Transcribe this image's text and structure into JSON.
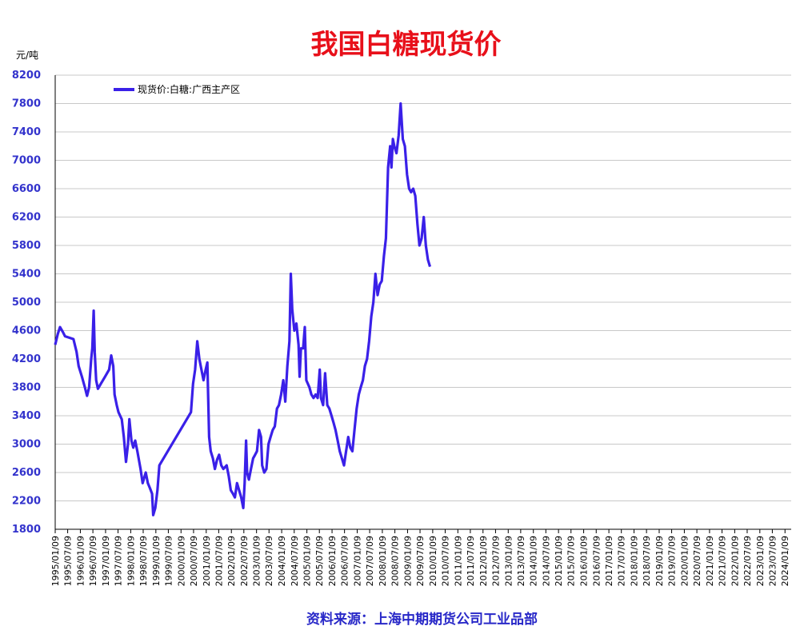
{
  "chart_data": {
    "type": "line",
    "title": "我国白糖现货价",
    "unit_label": "元/吨",
    "source": "资料来源：上海中期期货公司工业品部",
    "ylim": [
      1800,
      8200
    ],
    "yticks": [
      "8200",
      "7800",
      "7400",
      "7000",
      "6600",
      "6200",
      "5800",
      "5400",
      "5000",
      "4600",
      "4200",
      "3800",
      "3400",
      "3000",
      "2600",
      "2200",
      "1800"
    ],
    "xticks": [
      "1995/01/09",
      "1995/07/09",
      "1996/01/09",
      "1996/07/09",
      "1997/01/09",
      "1997/07/09",
      "1998/01/09",
      "1998/07/09",
      "1999/01/09",
      "1999/07/09",
      "2000/01/09",
      "2000/07/09",
      "2001/01/09",
      "2001/07/09",
      "2002/01/09",
      "2002/07/09",
      "2003/01/09",
      "2003/07/09",
      "2004/01/09",
      "2004/07/09",
      "2005/01/09",
      "2005/07/09",
      "2006/01/09",
      "2006/07/09",
      "2007/01/09",
      "2007/07/09",
      "2008/01/09",
      "2008/07/09",
      "2009/01/09",
      "2009/07/09",
      "2010/01/09",
      "2010/07/09",
      "2011/01/09",
      "2011/07/09",
      "2012/01/09",
      "2012/07/09",
      "2013/01/09",
      "2013/07/09",
      "2014/01/09",
      "2014/07/09",
      "2015/01/09",
      "2015/07/09",
      "2016/01/09",
      "2016/07/09",
      "2017/01/09",
      "2017/07/09",
      "2018/01/09",
      "2018/07/09",
      "2019/01/09",
      "2019/07/09",
      "2020/01/09",
      "2020/07/09",
      "2021/01/09",
      "2021/07/09",
      "2022/01/09",
      "2022/07/09",
      "2023/01/09",
      "2023/07/09",
      "2024/01/09"
    ],
    "grid": true,
    "legend_position": "top-left",
    "series": [
      {
        "name": "现货价:白糖:广西主产区",
        "color": "#3a20e8",
        "points": [
          [
            "1995/01/09",
            4400
          ],
          [
            "1995/02/15",
            4550
          ],
          [
            "1995/03/20",
            4650
          ],
          [
            "1995/05/01",
            4580
          ],
          [
            "1995/06/01",
            4520
          ],
          [
            "1995/08/01",
            4500
          ],
          [
            "1995/10/01",
            4480
          ],
          [
            "1995/11/15",
            4300
          ],
          [
            "1995/12/15",
            4100
          ],
          [
            "1996/02/01",
            3950
          ],
          [
            "1996/03/15",
            3800
          ],
          [
            "1996/04/15",
            3680
          ],
          [
            "1996/05/15",
            3800
          ],
          [
            "1996/06/15",
            4200
          ],
          [
            "1996/07/01",
            4350
          ],
          [
            "1996/07/20",
            4880
          ],
          [
            "1996/08/05",
            4300
          ],
          [
            "1996/08/25",
            3900
          ],
          [
            "1996/09/20",
            3780
          ],
          [
            "1996/11/01",
            3850
          ],
          [
            "1997/01/01",
            3950
          ],
          [
            "1997/03/01",
            4050
          ],
          [
            "1997/04/01",
            4250
          ],
          [
            "1997/05/01",
            4100
          ],
          [
            "1997/05/20",
            3700
          ],
          [
            "1997/06/20",
            3550
          ],
          [
            "1997/07/15",
            3450
          ],
          [
            "1997/09/01",
            3350
          ],
          [
            "1997/10/01",
            3100
          ],
          [
            "1997/11/01",
            2750
          ],
          [
            "1997/12/01",
            3000
          ],
          [
            "1997/12/20",
            3350
          ],
          [
            "1998/01/20",
            3050
          ],
          [
            "1998/02/15",
            2950
          ],
          [
            "1998/03/15",
            3050
          ],
          [
            "1998/04/15",
            2900
          ],
          [
            "1998/06/01",
            2650
          ],
          [
            "1998/07/01",
            2450
          ],
          [
            "1998/08/15",
            2600
          ],
          [
            "1998/09/15",
            2450
          ],
          [
            "1998/10/15",
            2380
          ],
          [
            "1998/11/15",
            2300
          ],
          [
            "1998/12/01",
            2000
          ],
          [
            "1999/01/01",
            2100
          ],
          [
            "1999/02/01",
            2350
          ],
          [
            "1999/03/01",
            2700
          ],
          [
            "2000/06/01",
            3450
          ],
          [
            "2000/07/01",
            3850
          ],
          [
            "2000/08/01",
            4050
          ],
          [
            "2000/09/01",
            4450
          ],
          [
            "2000/10/01",
            4200
          ],
          [
            "2000/11/01",
            4050
          ],
          [
            "2000/12/01",
            3900
          ],
          [
            "2001/01/01",
            4050
          ],
          [
            "2001/01/25",
            4150
          ],
          [
            "2001/02/20",
            3100
          ],
          [
            "2001/03/15",
            2900
          ],
          [
            "2001/04/15",
            2800
          ],
          [
            "2001/05/15",
            2650
          ],
          [
            "2001/06/15",
            2780
          ],
          [
            "2001/07/15",
            2850
          ],
          [
            "2001/08/15",
            2700
          ],
          [
            "2001/09/15",
            2650
          ],
          [
            "2001/11/01",
            2700
          ],
          [
            "2001/12/01",
            2550
          ],
          [
            "2002/01/01",
            2350
          ],
          [
            "2002/02/01",
            2300
          ],
          [
            "2002/03/01",
            2250
          ],
          [
            "2002/04/01",
            2450
          ],
          [
            "2002/05/01",
            2350
          ],
          [
            "2002/06/01",
            2250
          ],
          [
            "2002/07/01",
            2100
          ],
          [
            "2002/07/20",
            2450
          ],
          [
            "2002/08/10",
            3050
          ],
          [
            "2002/08/25",
            2600
          ],
          [
            "2002/09/20",
            2500
          ],
          [
            "2002/10/20",
            2650
          ],
          [
            "2002/11/20",
            2800
          ],
          [
            "2002/12/20",
            2850
          ],
          [
            "2003/01/15",
            2900
          ],
          [
            "2003/02/15",
            3200
          ],
          [
            "2003/03/15",
            3100
          ],
          [
            "2003/04/01",
            2700
          ],
          [
            "2003/05/01",
            2600
          ],
          [
            "2003/06/01",
            2650
          ],
          [
            "2003/07/01",
            3000
          ],
          [
            "2003/08/01",
            3100
          ],
          [
            "2003/09/01",
            3200
          ],
          [
            "2003/10/01",
            3250
          ],
          [
            "2003/11/01",
            3500
          ],
          [
            "2003/12/01",
            3550
          ],
          [
            "2004/01/01",
            3700
          ],
          [
            "2004/02/01",
            3900
          ],
          [
            "2004/03/01",
            3600
          ],
          [
            "2004/04/01",
            4100
          ],
          [
            "2004/05/01",
            4450
          ],
          [
            "2004/05/20",
            5400
          ],
          [
            "2004/06/10",
            4900
          ],
          [
            "2004/07/10",
            4600
          ],
          [
            "2004/08/10",
            4700
          ],
          [
            "2004/09/10",
            4400
          ],
          [
            "2004/09/25",
            3950
          ],
          [
            "2004/10/15",
            4350
          ],
          [
            "2004/11/15",
            4350
          ],
          [
            "2004/12/10",
            4650
          ],
          [
            "2005/01/01",
            3900
          ],
          [
            "2005/02/15",
            3800
          ],
          [
            "2005/03/15",
            3700
          ],
          [
            "2005/04/15",
            3650
          ],
          [
            "2005/05/15",
            3700
          ],
          [
            "2005/06/15",
            3650
          ],
          [
            "2005/07/15",
            4050
          ],
          [
            "2005/08/01",
            3650
          ],
          [
            "2005/09/01",
            3550
          ],
          [
            "2005/10/01",
            4000
          ],
          [
            "2005/11/01",
            3550
          ],
          [
            "2005/12/01",
            3500
          ],
          [
            "2006/01/01",
            3400
          ],
          [
            "2006/02/01",
            3300
          ],
          [
            "2006/03/01",
            3200
          ],
          [
            "2006/04/01",
            3050
          ],
          [
            "2006/05/01",
            2900
          ],
          [
            "2006/06/01",
            2800
          ],
          [
            "2006/07/01",
            2700
          ],
          [
            "2006/08/01",
            2900
          ],
          [
            "2006/09/01",
            3100
          ],
          [
            "2006/10/01",
            2950
          ],
          [
            "2006/11/01",
            2900
          ],
          [
            "2006/12/01",
            3200
          ],
          [
            "2007/01/01",
            3500
          ],
          [
            "2007/02/01",
            3700
          ],
          [
            "2007/03/01",
            3800
          ],
          [
            "2007/04/01",
            3900
          ],
          [
            "2007/05/01",
            4100
          ],
          [
            "2007/06/01",
            4200
          ],
          [
            "2007/07/01",
            4450
          ],
          [
            "2007/08/01",
            4800
          ],
          [
            "2007/09/01",
            5000
          ],
          [
            "2007/10/01",
            5400
          ],
          [
            "2007/11/01",
            5100
          ],
          [
            "2007/12/01",
            5250
          ],
          [
            "2008/01/01",
            5300
          ],
          [
            "2008/02/01",
            5650
          ],
          [
            "2008/03/01",
            5900
          ],
          [
            "2008/04/01",
            6900
          ],
          [
            "2008/05/01",
            7200
          ],
          [
            "2008/05/20",
            6900
          ],
          [
            "2008/06/10",
            7300
          ],
          [
            "2008/07/01",
            7200
          ],
          [
            "2008/08/01",
            7100
          ],
          [
            "2008/09/01",
            7350
          ],
          [
            "2008/10/01",
            7800
          ],
          [
            "2008/11/01",
            7300
          ],
          [
            "2008/12/01",
            7200
          ],
          [
            "2009/01/01",
            6800
          ],
          [
            "2009/02/01",
            6600
          ],
          [
            "2009/03/01",
            6550
          ],
          [
            "2009/04/01",
            6600
          ],
          [
            "2009/05/01",
            6500
          ],
          [
            "2009/06/01",
            6100
          ],
          [
            "2009/07/01",
            5800
          ],
          [
            "2009/08/01",
            5900
          ],
          [
            "2009/09/01",
            6200
          ],
          [
            "2009/10/01",
            5800
          ],
          [
            "2009/11/01",
            5600
          ],
          [
            "2009/12/01",
            5500
          ]
        ]
      }
    ]
  }
}
